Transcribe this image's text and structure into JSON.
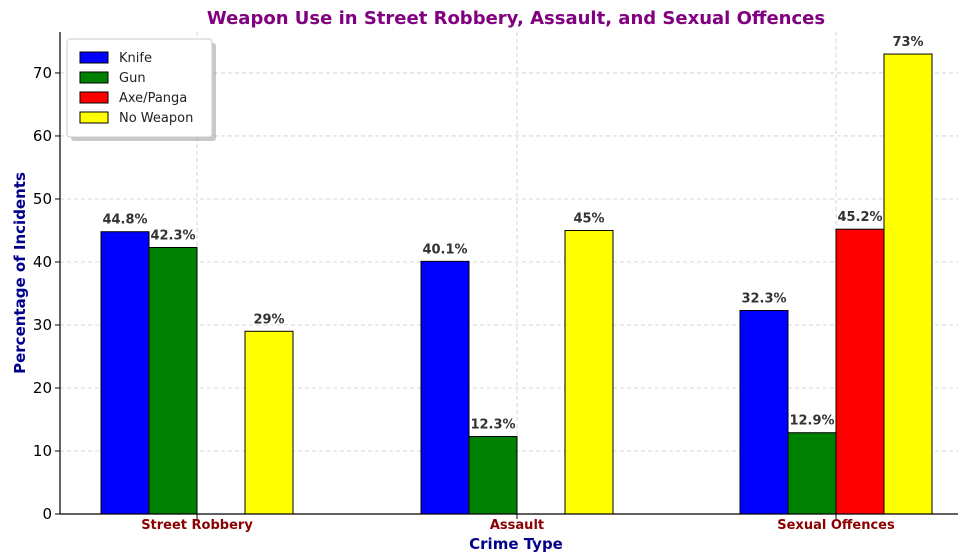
{
  "chart_data": {
    "type": "bar",
    "title": "Weapon Use in Street Robbery, Assault, and Sexual Offences",
    "xlabel": "Crime Type",
    "ylabel": "Percentage of Incidents",
    "categories": [
      "Street Robbery",
      "Assault",
      "Sexual Offences"
    ],
    "ylim": [
      0,
      76.5
    ],
    "yticks": [
      0,
      10,
      20,
      30,
      40,
      50,
      60,
      70
    ],
    "grid": true,
    "legend_position": "top-left",
    "series": [
      {
        "name": "Knife",
        "color": "#0000ff",
        "values": [
          44.8,
          40.1,
          32.3
        ],
        "labels": [
          "44.8%",
          "40.1%",
          "32.3%"
        ]
      },
      {
        "name": "Gun",
        "color": "#008000",
        "values": [
          42.3,
          12.3,
          12.9
        ],
        "labels": [
          "42.3%",
          "12.3%",
          "12.9%"
        ]
      },
      {
        "name": "Axe/Panga",
        "color": "#ff0000",
        "values": [
          null,
          null,
          45.2
        ],
        "labels": [
          null,
          null,
          "45.2%"
        ]
      },
      {
        "name": "No Weapon",
        "color": "#ffff00",
        "values": [
          29,
          45,
          73
        ],
        "labels": [
          "29%",
          "45%",
          "73%"
        ]
      }
    ],
    "colors": {
      "title": "#800080",
      "axis_label": "#00008b",
      "category_label": "#8b0000"
    }
  }
}
